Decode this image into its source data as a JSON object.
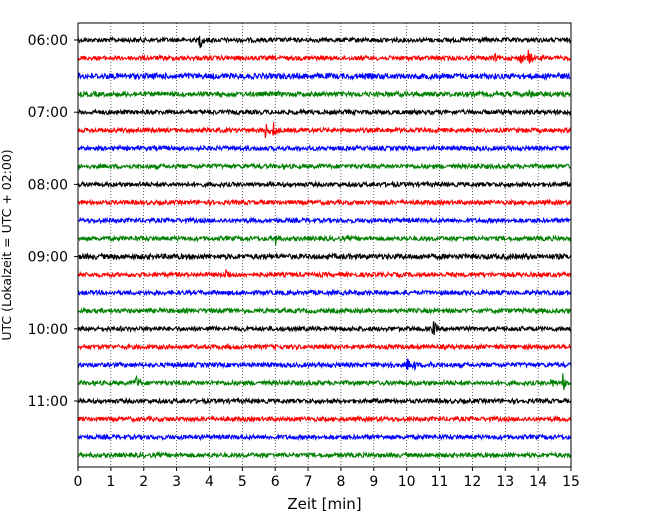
{
  "chart_data": {
    "type": "line",
    "title": "",
    "xlabel": "Zeit  [min]",
    "ylabel": "UTC (Lokalzeit = UTC + 02:00)",
    "xlim": [
      0,
      15
    ],
    "x_ticks": [
      "0",
      "1",
      "2",
      "3",
      "4",
      "5",
      "6",
      "7",
      "8",
      "9",
      "10",
      "11",
      "12",
      "13",
      "14",
      "15"
    ],
    "y_tick_labels": [
      {
        "label": "06:00",
        "trace_index": 0
      },
      {
        "label": "07:00",
        "trace_index": 4
      },
      {
        "label": "08:00",
        "trace_index": 8
      },
      {
        "label": "09:00",
        "trace_index": 12
      },
      {
        "label": "10:00",
        "trace_index": 16
      },
      {
        "label": "11:00",
        "trace_index": 20
      }
    ],
    "trace_interval_min": 15,
    "start_time": "06:00",
    "colors": [
      "#000000",
      "#ff0000",
      "#0000ff",
      "#008000"
    ],
    "vertical_grid": "dotted",
    "traces": [
      {
        "start": "06:00",
        "noise": 1.0,
        "events": [
          {
            "t": 3.7,
            "amp": 10
          },
          {
            "t": 2.5,
            "amp": 3
          },
          {
            "t": 11.6,
            "amp": 3
          }
        ]
      },
      {
        "start": "06:15",
        "noise": 1.0,
        "events": [
          {
            "t": 12.65,
            "amp": 6
          },
          {
            "t": 13.45,
            "amp": 8
          },
          {
            "t": 13.7,
            "amp": 9
          }
        ]
      },
      {
        "start": "06:30",
        "noise": 1.3,
        "events": []
      },
      {
        "start": "06:45",
        "noise": 1.1,
        "events": [
          {
            "t": 6.1,
            "amp": 3
          },
          {
            "t": 13.7,
            "amp": 7
          }
        ]
      },
      {
        "start": "07:00",
        "noise": 1.0,
        "events": []
      },
      {
        "start": "07:15",
        "noise": 1.0,
        "events": [
          {
            "t": 5.7,
            "amp": 9
          },
          {
            "t": 5.95,
            "amp": 9
          },
          {
            "t": 9.2,
            "amp": 3
          }
        ]
      },
      {
        "start": "07:30",
        "noise": 1.0,
        "events": []
      },
      {
        "start": "07:45",
        "noise": 1.0,
        "events": [
          {
            "t": 5.1,
            "amp": 3
          }
        ]
      },
      {
        "start": "08:00",
        "noise": 1.0,
        "events": []
      },
      {
        "start": "08:15",
        "noise": 1.0,
        "events": []
      },
      {
        "start": "08:30",
        "noise": 1.0,
        "events": []
      },
      {
        "start": "08:45",
        "noise": 1.0,
        "events": [
          {
            "t": 6.0,
            "amp": 8
          },
          {
            "t": 10.5,
            "amp": 3
          }
        ]
      },
      {
        "start": "09:00",
        "noise": 1.2,
        "events": [
          {
            "t": 3.0,
            "amp": 3
          }
        ]
      },
      {
        "start": "09:15",
        "noise": 1.0,
        "events": [
          {
            "t": 4.5,
            "amp": 8
          }
        ]
      },
      {
        "start": "09:30",
        "noise": 1.0,
        "events": []
      },
      {
        "start": "09:45",
        "noise": 1.0,
        "events": []
      },
      {
        "start": "10:00",
        "noise": 1.0,
        "events": [
          {
            "t": 10.8,
            "amp": 9
          },
          {
            "t": 1.3,
            "amp": 3
          }
        ]
      },
      {
        "start": "10:15",
        "noise": 1.0,
        "events": []
      },
      {
        "start": "10:30",
        "noise": 1.0,
        "events": [
          {
            "t": 9.45,
            "amp": 7
          },
          {
            "t": 10.0,
            "amp": 8
          },
          {
            "t": 10.2,
            "amp": 7
          },
          {
            "t": 10.7,
            "amp": 7
          },
          {
            "t": 8.9,
            "amp": 3
          }
        ]
      },
      {
        "start": "10:45",
        "noise": 1.0,
        "events": [
          {
            "t": 1.75,
            "amp": 9
          },
          {
            "t": 14.4,
            "amp": 6
          },
          {
            "t": 14.75,
            "amp": 10
          }
        ]
      },
      {
        "start": "11:00",
        "noise": 1.0,
        "events": [
          {
            "t": 5.3,
            "amp": 3
          },
          {
            "t": 7.0,
            "amp": 3
          }
        ]
      },
      {
        "start": "11:15",
        "noise": 1.0,
        "events": []
      },
      {
        "start": "11:30",
        "noise": 1.0,
        "events": []
      },
      {
        "start": "11:45",
        "noise": 1.0,
        "events": []
      }
    ]
  }
}
